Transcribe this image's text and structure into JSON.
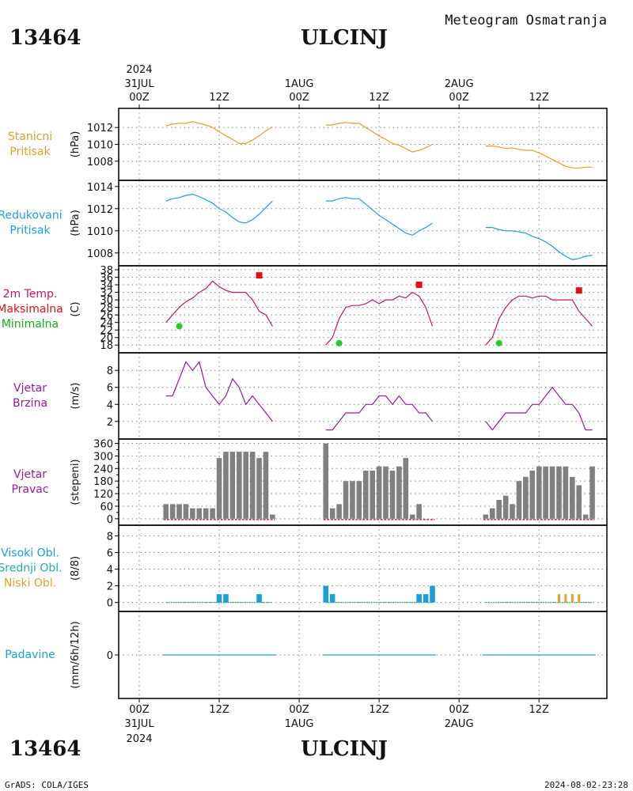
{
  "header": {
    "station_id": "13464",
    "station_name": "ULCINJ",
    "product": "Meteogram Osmatranja"
  },
  "footer": {
    "station_id": "13464",
    "station_name": "ULCINJ",
    "credit": "GrADS: COLA/IGES",
    "timestamp": "2024-08-02-23:28"
  },
  "time_axis": {
    "top_year": "2024",
    "labels": [
      {
        "hour": 0,
        "line1": "00Z",
        "line2": "31JUL",
        "line3": "2024"
      },
      {
        "hour": 12,
        "line1": "12Z",
        "line2": "",
        "line3": ""
      },
      {
        "hour": 24,
        "line1": "00Z",
        "line2": "1AUG",
        "line3": ""
      },
      {
        "hour": 36,
        "line1": "12Z",
        "line2": "",
        "line3": ""
      },
      {
        "hour": 48,
        "line1": "00Z",
        "line2": "2AUG",
        "line3": ""
      },
      {
        "hour": 60,
        "line1": "12Z",
        "line2": "",
        "line3": ""
      }
    ]
  },
  "chart_data": [
    {
      "id": "station-pressure",
      "type": "line",
      "label_lines": [
        "Stanicni",
        "Pritisak"
      ],
      "label_color": "#e0a030",
      "ylabel": "(hPa)",
      "ylim": [
        1006.2,
        1013.8
      ],
      "yticks": [
        1008,
        1010,
        1012
      ],
      "grid": true,
      "series": [
        {
          "color": "#e0a030",
          "segments": [
            {
              "x": [
                4,
                5,
                6,
                7,
                8,
                9,
                10,
                11,
                12,
                13,
                14,
                15,
                16,
                17,
                18,
                19,
                20
              ],
              "y": [
                1012.2,
                1012.4,
                1012.5,
                1012.5,
                1012.7,
                1012.5,
                1012.3,
                1012.0,
                1011.5,
                1011.0,
                1010.6,
                1010.1,
                1010.1,
                1010.5,
                1011.0,
                1011.6,
                1012.1
              ]
            },
            {
              "x": [
                28,
                29,
                30,
                31,
                32,
                33,
                34,
                35,
                36,
                37,
                38,
                39,
                40,
                41,
                42,
                43,
                44
              ],
              "y": [
                1012.3,
                1012.3,
                1012.5,
                1012.6,
                1012.5,
                1012.5,
                1012.0,
                1011.5,
                1011.0,
                1010.6,
                1010.1,
                1009.9,
                1009.5,
                1009.1,
                1009.3,
                1009.6,
                1010.0
              ]
            },
            {
              "x": [
                52,
                53,
                54,
                55,
                56,
                57,
                58,
                59,
                60,
                61,
                62,
                63,
                64,
                65,
                66,
                67,
                68
              ],
              "y": [
                1009.8,
                1009.8,
                1009.7,
                1009.5,
                1009.6,
                1009.4,
                1009.3,
                1009.3,
                1009.0,
                1008.6,
                1008.2,
                1007.8,
                1007.4,
                1007.2,
                1007.2,
                1007.3,
                1007.3
              ]
            }
          ]
        }
      ]
    },
    {
      "id": "reduced-pressure",
      "type": "line",
      "label_lines": [
        "Redukovani",
        "Pritisak"
      ],
      "label_color": "#1aa0d8",
      "ylabel": "(hPa)",
      "ylim": [
        1007.2,
        1014.2
      ],
      "yticks": [
        1008,
        1010,
        1012,
        1014
      ],
      "grid": true,
      "series": [
        {
          "color": "#1aa0d8",
          "segments": [
            {
              "x": [
                4,
                5,
                6,
                7,
                8,
                9,
                10,
                11,
                12,
                13,
                14,
                15,
                16,
                17,
                18,
                19,
                20
              ],
              "y": [
                1012.7,
                1012.9,
                1013.0,
                1013.2,
                1013.3,
                1013.1,
                1012.8,
                1012.5,
                1012.0,
                1011.7,
                1011.2,
                1010.8,
                1010.7,
                1011.0,
                1011.5,
                1012.1,
                1012.7
              ]
            },
            {
              "x": [
                28,
                29,
                30,
                31,
                32,
                33,
                34,
                35,
                36,
                37,
                38,
                39,
                40,
                41,
                42,
                43,
                44
              ],
              "y": [
                1012.7,
                1012.7,
                1012.9,
                1013.0,
                1012.9,
                1012.9,
                1012.4,
                1011.9,
                1011.4,
                1011.0,
                1010.6,
                1010.2,
                1009.8,
                1009.6,
                1010.0,
                1010.3,
                1010.7
              ]
            },
            {
              "x": [
                52,
                53,
                54,
                55,
                56,
                57,
                58,
                59,
                60,
                61,
                62,
                63,
                64,
                65,
                66,
                67,
                68
              ],
              "y": [
                1010.3,
                1010.3,
                1010.1,
                1010.0,
                1010.0,
                1009.9,
                1009.8,
                1009.5,
                1009.3,
                1009.0,
                1008.6,
                1008.1,
                1007.7,
                1007.4,
                1007.5,
                1007.7,
                1007.8
              ]
            }
          ]
        }
      ]
    },
    {
      "id": "temperature",
      "type": "line",
      "label_lines": [
        "2m Temp.",
        "Maksimalna",
        "Minimalna"
      ],
      "label_colors": [
        "#c0186f",
        "#e01010",
        "#10b010"
      ],
      "ylabel": "(C)",
      "ylim": [
        17,
        38
      ],
      "yticks": [
        18,
        20,
        22,
        24,
        26,
        28,
        30,
        32,
        34,
        36,
        38
      ],
      "grid": true,
      "series": [
        {
          "name": "2m Temp.",
          "color": "#c0186f",
          "segments": [
            {
              "x": [
                4,
                5,
                6,
                7,
                8,
                9,
                10,
                11,
                12,
                13,
                14,
                15,
                16,
                17,
                18,
                19,
                20
              ],
              "y": [
                24,
                26,
                28,
                29.5,
                30.5,
                32,
                33,
                35,
                33.5,
                32.5,
                32,
                32,
                32,
                30,
                27,
                26,
                23
              ]
            },
            {
              "x": [
                28,
                29,
                30,
                31,
                32,
                33,
                34,
                35,
                36,
                37,
                38,
                39,
                40,
                41,
                42,
                43,
                44
              ],
              "y": [
                18,
                20,
                25,
                28,
                28.5,
                28.5,
                29,
                30,
                29,
                30,
                30,
                31,
                30.5,
                32,
                31,
                28,
                23
              ]
            },
            {
              "x": [
                52,
                53,
                54,
                55,
                56,
                57,
                58,
                59,
                60,
                61,
                62,
                63,
                64,
                65,
                66,
                67,
                68
              ],
              "y": [
                18,
                20,
                25,
                28,
                30,
                31,
                31,
                30.5,
                31,
                31,
                30,
                30,
                30,
                30,
                27,
                25,
                23
              ]
            }
          ]
        }
      ],
      "max_points": {
        "color": "#e01010",
        "x": [
          18,
          42,
          66
        ],
        "y": [
          36.5,
          34,
          32.5
        ]
      },
      "min_points": {
        "color": "#20d020",
        "x": [
          6,
          30,
          54
        ],
        "y": [
          23,
          18.5,
          18.5
        ]
      }
    },
    {
      "id": "wind-speed",
      "type": "line",
      "label_lines": [
        "Vjetar",
        "Brzina"
      ],
      "label_color": "#9a1aa0",
      "ylabel": "(m/s)",
      "ylim": [
        0.4,
        9.6
      ],
      "yticks": [
        2,
        4,
        6,
        8
      ],
      "grid": true,
      "series": [
        {
          "color": "#9a1aa0",
          "segments": [
            {
              "x": [
                4,
                5,
                6,
                7,
                8,
                9,
                10,
                11,
                12,
                13,
                14,
                15,
                16,
                17,
                18,
                19,
                20
              ],
              "y": [
                5,
                5,
                7,
                9,
                8,
                9,
                6,
                5,
                4,
                5,
                7,
                6,
                4,
                5,
                4,
                3,
                2
              ]
            },
            {
              "x": [
                28,
                29,
                30,
                31,
                32,
                33,
                34,
                35,
                36,
                37,
                38,
                39,
                40,
                41,
                42,
                43,
                44
              ],
              "y": [
                1,
                1,
                2,
                3,
                3,
                3,
                4,
                4,
                5,
                5,
                4,
                5,
                4,
                4,
                3,
                3,
                2
              ]
            },
            {
              "x": [
                52,
                53,
                54,
                55,
                56,
                57,
                58,
                59,
                60,
                61,
                62,
                63,
                64,
                65,
                66,
                67,
                68
              ],
              "y": [
                2,
                1,
                2,
                3,
                3,
                3,
                3,
                4,
                4,
                5,
                6,
                5,
                4,
                4,
                3,
                1,
                1
              ]
            }
          ]
        }
      ]
    },
    {
      "id": "wind-direction",
      "type": "bar",
      "label_lines": [
        "Vjetar",
        "Pravac"
      ],
      "label_color": "#9a1aa0",
      "ylabel": "(stepeni)",
      "ylim": [
        -12,
        362
      ],
      "yticks": [
        0,
        60,
        120,
        180,
        240,
        300,
        360
      ],
      "ytick_labels": [
        "0",
        "60",
        "120",
        "180",
        "240",
        "300",
        "360"
      ],
      "extra_ticks": [
        30,
        90,
        150,
        210,
        270,
        330
      ],
      "grid": true,
      "bar_color": "#808080",
      "baseline_color": "#c0304a",
      "x": [
        4,
        5,
        6,
        7,
        8,
        9,
        10,
        11,
        12,
        13,
        14,
        15,
        16,
        17,
        18,
        19,
        20,
        28,
        29,
        30,
        31,
        32,
        33,
        34,
        35,
        36,
        37,
        38,
        39,
        40,
        41,
        42,
        43,
        44,
        52,
        53,
        54,
        55,
        56,
        57,
        58,
        59,
        60,
        61,
        62,
        63,
        64,
        65,
        66,
        67,
        68
      ],
      "values": [
        70,
        70,
        70,
        70,
        50,
        50,
        50,
        50,
        290,
        320,
        320,
        320,
        320,
        320,
        290,
        320,
        20,
        360,
        50,
        70,
        180,
        180,
        180,
        230,
        230,
        250,
        250,
        230,
        250,
        290,
        20,
        70,
        0,
        0,
        20,
        50,
        90,
        110,
        70,
        180,
        200,
        230,
        250,
        250,
        250,
        250,
        250,
        200,
        160,
        20,
        250
      ]
    },
    {
      "id": "clouds",
      "type": "bar",
      "label_lines": [
        "Visoki Obl.",
        "Srednji Obl.",
        "Niski Obl."
      ],
      "label_colors": [
        "#1aa0d8",
        "#20b0a0",
        "#e0a030"
      ],
      "ylabel": "(8/8)",
      "ylim": [
        -0.6,
        8.8
      ],
      "yticks": [
        0,
        2,
        4,
        6,
        8
      ],
      "grid": true,
      "series": [
        {
          "name": "Visoki Obl.",
          "color": "#1aa0d8",
          "x": [
            12,
            13,
            18,
            28,
            29,
            42,
            43,
            44
          ],
          "values": [
            1,
            1,
            1,
            2,
            1,
            1,
            1,
            2
          ]
        },
        {
          "name": "Niski Obl.",
          "color": "#e0a030",
          "x": [
            63,
            64,
            65,
            66
          ],
          "values": [
            1,
            1,
            1,
            1
          ]
        }
      ],
      "baseline_segments": [
        [
          4,
          20
        ],
        [
          28,
          44
        ],
        [
          52,
          68
        ]
      ],
      "baseline_color": "#20a060"
    },
    {
      "id": "precipitation",
      "type": "line",
      "label_lines": [
        "Padavine"
      ],
      "label_color": "#1aa0d8",
      "ylabel": "(mm/6h/12h)",
      "ylim": [
        -5,
        5
      ],
      "yticks": [
        0
      ],
      "grid": true,
      "series": [
        {
          "color": "#1aa0d8",
          "segments": [
            {
              "x": [
                3.5,
                20.5
              ],
              "y": [
                0,
                0
              ]
            },
            {
              "x": [
                27.5,
                44.5
              ],
              "y": [
                0,
                0
              ]
            },
            {
              "x": [
                51.5,
                68.5
              ],
              "y": [
                0,
                0
              ]
            }
          ]
        }
      ]
    }
  ]
}
